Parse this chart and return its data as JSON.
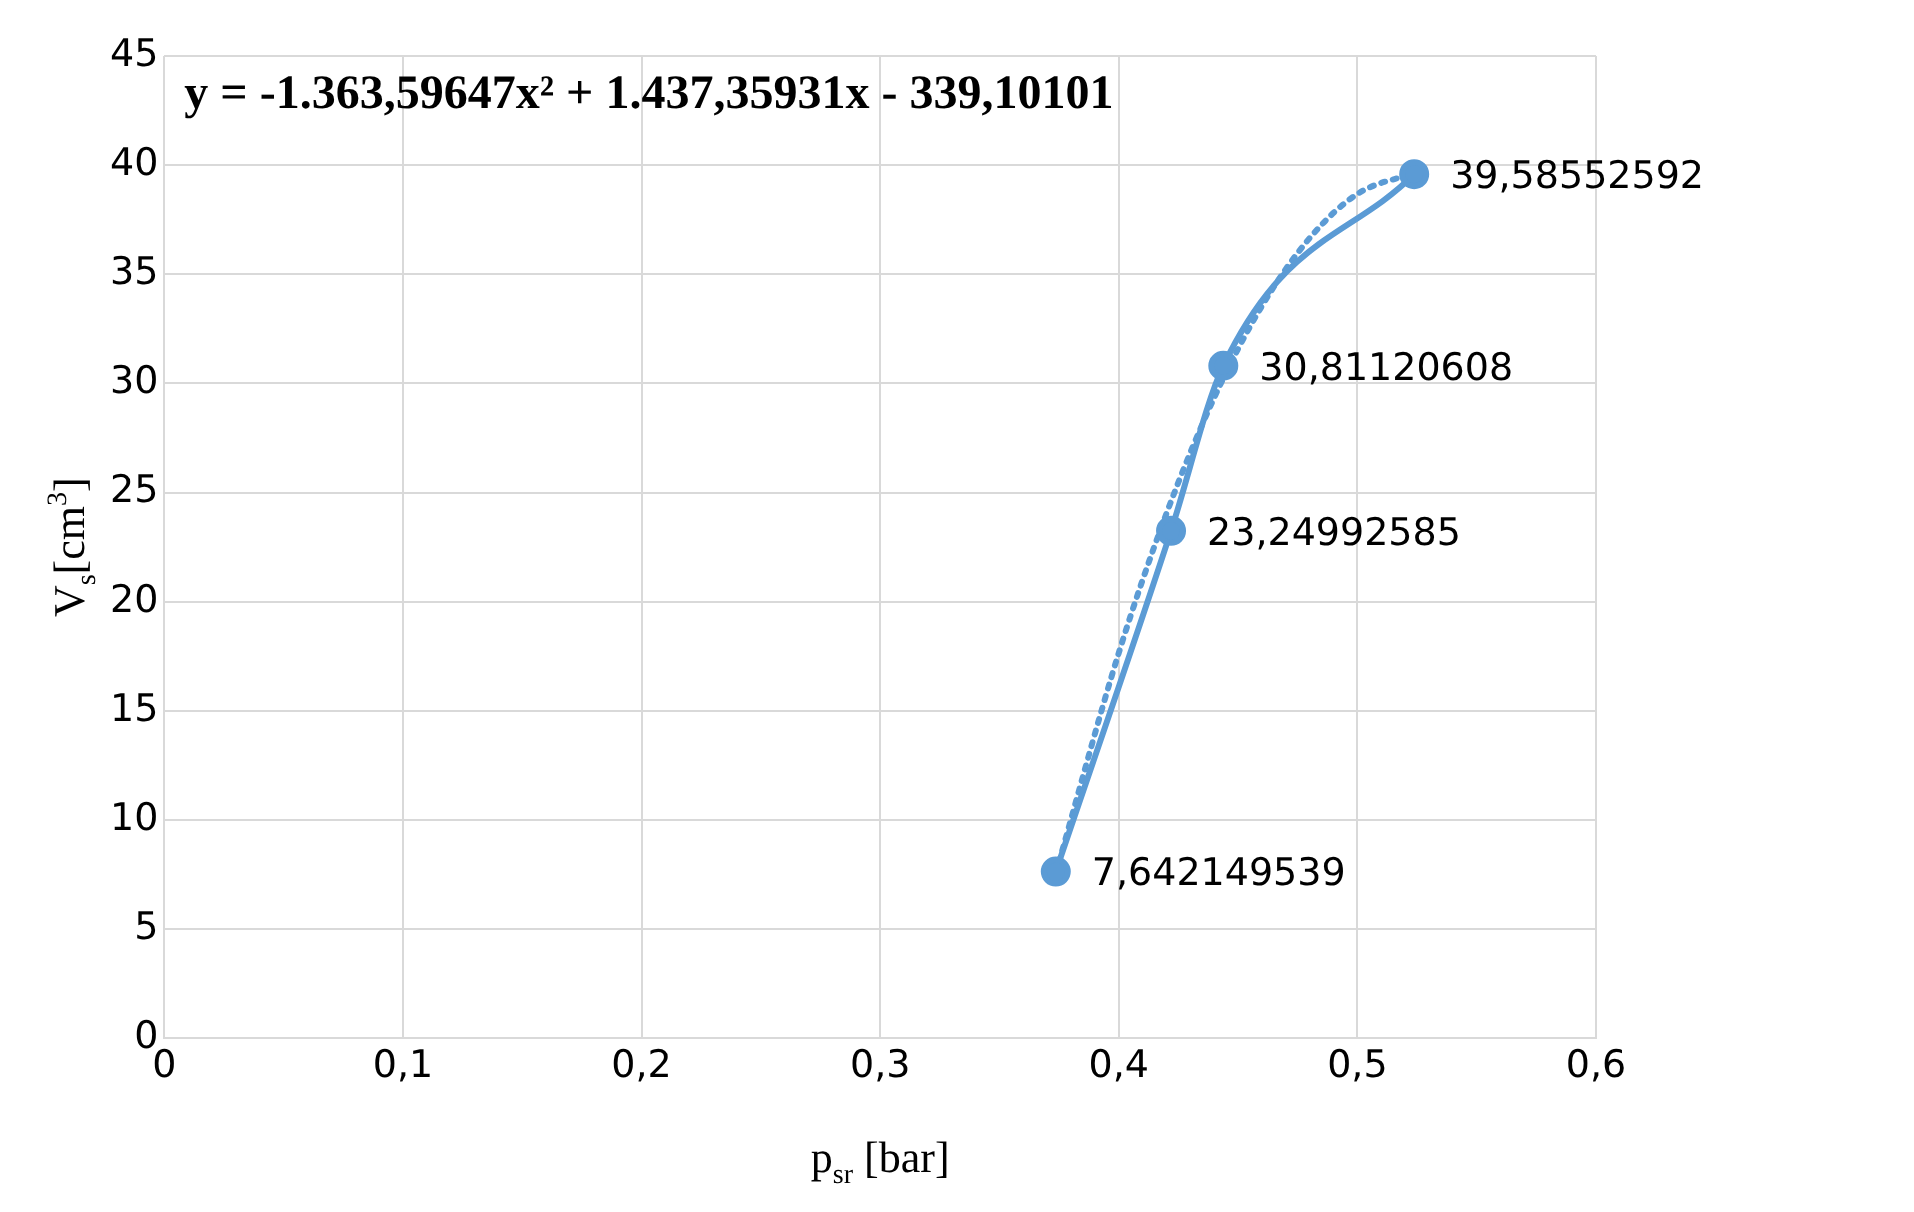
{
  "chart_data": {
    "type": "scatter",
    "xlabel": "p$_{sr}$ [bar]",
    "ylabel": "V$_{s}$[cm$^{3}$]",
    "annotations": [
      "y = -1.363,59647x² + 1.437,35931x - 339,10101"
    ],
    "xlim": [
      0,
      0.6
    ],
    "xticks": [
      {
        "value": 0,
        "label": "0"
      },
      {
        "value": 0.1,
        "label": "0,1"
      },
      {
        "value": 0.2,
        "label": "0,2"
      },
      {
        "value": 0.3,
        "label": "0,3"
      },
      {
        "value": 0.4,
        "label": "0,4"
      },
      {
        "value": 0.5,
        "label": "0,5"
      },
      {
        "value": 0.6,
        "label": "0,6"
      }
    ],
    "ylim": [
      0,
      45
    ],
    "yticks": [
      0,
      5,
      10,
      15,
      20,
      25,
      30,
      35,
      40,
      45
    ],
    "grid": true,
    "legend": false,
    "series": [
      {
        "type": "line",
        "color": "#5b9bd5",
        "marker": "circle",
        "line_style": "solid",
        "x": [
          0.3736,
          0.4219,
          0.4438,
          0.5238
        ],
        "values": [
          7.642149539,
          23.24992585,
          30.81120608,
          39.58552592
        ],
        "value_labels": [
          "7,642149539",
          "23,24992585",
          "30,81120608",
          "39,58552592"
        ]
      },
      {
        "type": "line",
        "color": "#5b9bd5",
        "marker": "none",
        "line_style": "dotted",
        "x": [
          0.3736,
          0.4,
          0.42,
          0.44,
          0.46,
          0.48,
          0.5,
          0.5238
        ],
        "values": [
          7.56,
          17.66,
          24.05,
          29.35,
          33.55,
          36.66,
          38.68,
          39.64
        ]
      }
    ]
  }
}
